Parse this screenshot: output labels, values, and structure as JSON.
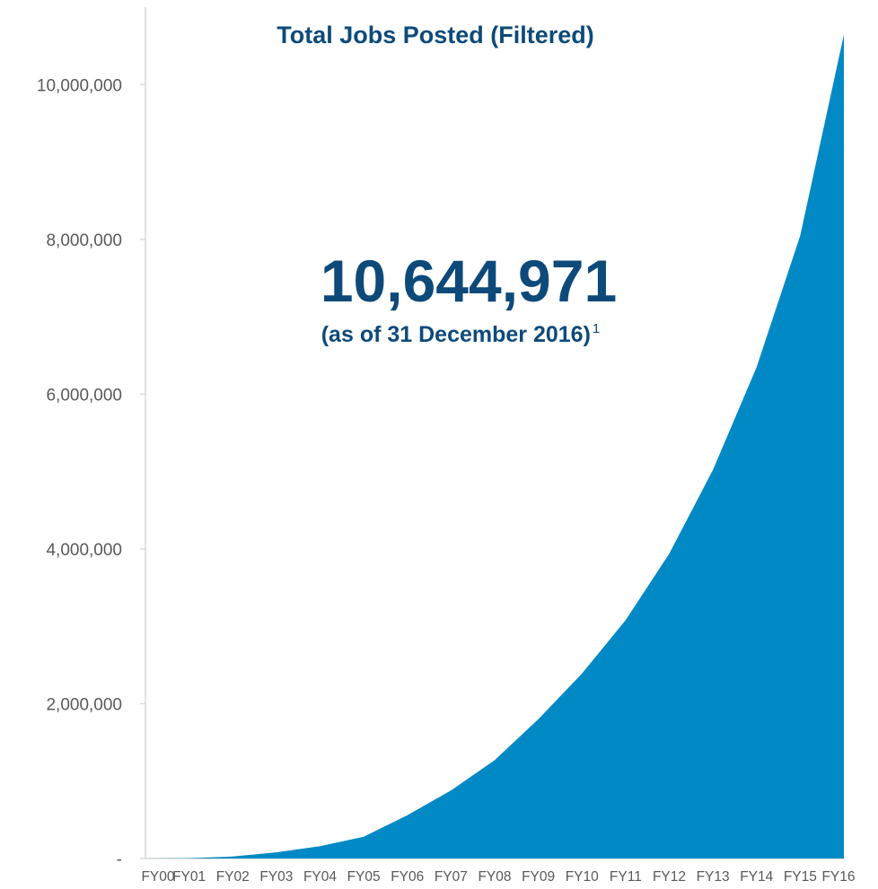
{
  "chart_data": {
    "type": "area",
    "title": "Total Jobs Posted (Filtered)",
    "annotation": {
      "value": "10,644,971",
      "note": "(as of 31 December 2016)",
      "footnote_marker": "1"
    },
    "categories": [
      "FY00",
      "FY01",
      "FY02",
      "FY03",
      "FY04",
      "FY05",
      "FY06",
      "FY07",
      "FY08",
      "FY09",
      "FY10",
      "FY11",
      "FY12",
      "FY13",
      "FY14",
      "FY15",
      "FY16"
    ],
    "values": [
      0,
      5000,
      25000,
      80000,
      160000,
      280000,
      560000,
      880000,
      1270000,
      1800000,
      2390000,
      3080000,
      3940000,
      5020000,
      6350000,
      8050000,
      10644971
    ],
    "ylim": [
      0,
      11000000
    ],
    "yticks": [
      0,
      2000000,
      4000000,
      6000000,
      8000000,
      10000000
    ],
    "ytick_labels": [
      "-",
      "2,000,000",
      "4,000,000",
      "6,000,000",
      "8,000,000",
      "10,000,000"
    ],
    "xlabel": "",
    "ylabel": "",
    "grid": false,
    "legend": "none",
    "fill_color": "#0089c4",
    "text_color": "#0d4a7a"
  }
}
